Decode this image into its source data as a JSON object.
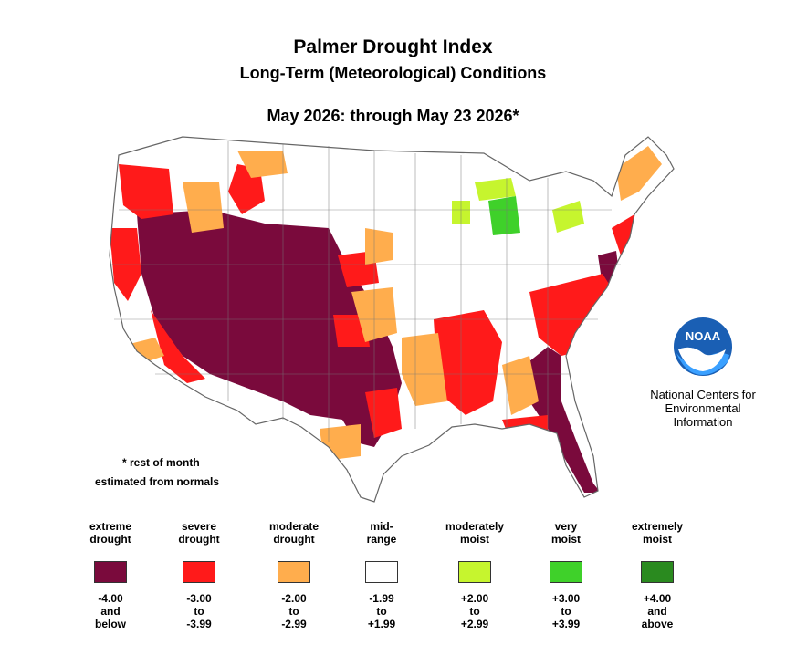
{
  "title": "Palmer Drought Index",
  "subtitle": "Long-Term (Meteorological) Conditions",
  "period": "May 2026: through May 23 2026*",
  "footnote": {
    "line1": "* rest of month",
    "line2": "estimated from normals"
  },
  "organization": {
    "logo_text": "NOAA",
    "line1": "National Centers for",
    "line2": "Environmental",
    "line3": "Information"
  },
  "colors": {
    "extreme_drought": "#7a0a3c",
    "severe_drought": "#ff1a1a",
    "moderate_drought": "#ffad4d",
    "mid_range": "#ffffff",
    "moderately_moist": "#c6f52e",
    "very_moist": "#3fd12a",
    "extremely_moist": "#2a8a1f"
  },
  "legend": [
    {
      "label1": "extreme",
      "label2": "drought",
      "color": "#7a0a3c",
      "r1": "-4.00",
      "r2": "and",
      "r3": "below"
    },
    {
      "label1": "severe",
      "label2": "drought",
      "color": "#ff1a1a",
      "r1": "-3.00",
      "r2": "to",
      "r3": "-3.99"
    },
    {
      "label1": "moderate",
      "label2": "drought",
      "color": "#ffad4d",
      "r1": "-2.00",
      "r2": "to",
      "r3": "-2.99"
    },
    {
      "label1": "mid-",
      "label2": "range",
      "color": "#ffffff",
      "r1": "-1.99",
      "r2": "to",
      "r3": "+1.99"
    },
    {
      "label1": "moderately",
      "label2": "moist",
      "color": "#c6f52e",
      "r1": "+2.00",
      "r2": "to",
      "r3": "+2.99"
    },
    {
      "label1": "very",
      "label2": "moist",
      "color": "#3fd12a",
      "r1": "+3.00",
      "r2": "to",
      "r3": "+3.99"
    },
    {
      "label1": "extremely",
      "label2": "moist",
      "color": "#2a8a1f",
      "r1": "+4.00",
      "r2": "and",
      "r3": "above"
    }
  ]
}
